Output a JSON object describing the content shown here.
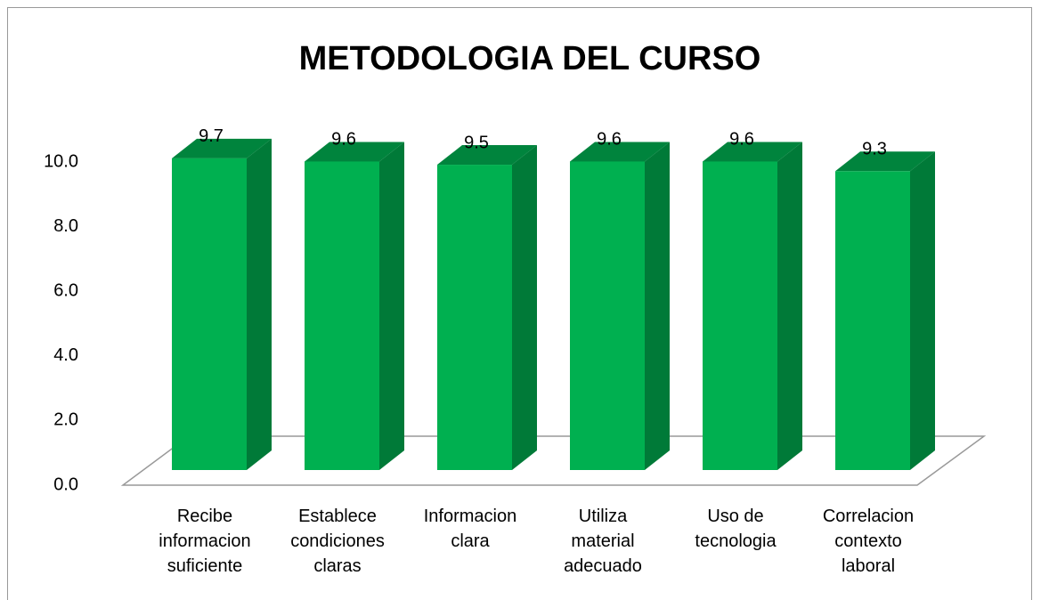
{
  "chart_data": {
    "type": "bar3d",
    "title": "METODOLOGIA DEL CURSO",
    "categories": [
      "Recibe informacion suficiente",
      "Establece condiciones claras",
      "Informacion clara",
      "Utiliza material adecuado",
      "Uso de tecnologia",
      "Correlacion contexto laboral"
    ],
    "values": [
      9.7,
      9.6,
      9.5,
      9.6,
      9.6,
      9.3
    ],
    "color": "#00b050",
    "side_color": "#007a38",
    "top_color": "#00843d",
    "ylim": [
      0,
      10
    ],
    "yticks": [
      {
        "value": 0,
        "label": "0.0"
      },
      {
        "value": 2,
        "label": "2.0"
      },
      {
        "value": 4,
        "label": "4.0"
      },
      {
        "value": 6,
        "label": "6.0"
      },
      {
        "value": 8,
        "label": "8.0"
      },
      {
        "value": 10,
        "label": "10.0"
      }
    ]
  }
}
